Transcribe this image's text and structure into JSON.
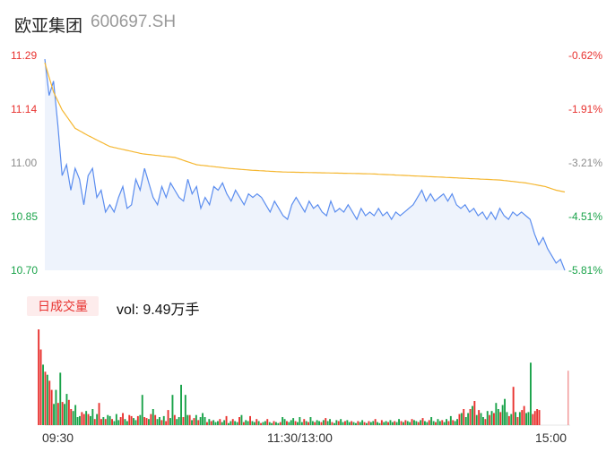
{
  "header": {
    "name": "欧亚集团",
    "code": "600697.SH"
  },
  "chart_data": {
    "type": "line",
    "price_ticks": [
      "11.29",
      "11.14",
      "11.00",
      "10.85",
      "10.70"
    ],
    "pct_ticks": [
      "-0.62%",
      "-1.91%",
      "-3.21%",
      "-4.51%",
      "-5.81%"
    ],
    "ylim": [
      10.7,
      11.29
    ],
    "x_ticks": [
      "09:30",
      "11:30/13:00",
      "15:00"
    ],
    "points": 241,
    "price_anchors": [
      [
        0,
        11.28
      ],
      [
        2,
        11.18
      ],
      [
        4,
        11.22
      ],
      [
        6,
        11.1
      ],
      [
        8,
        10.96
      ],
      [
        10,
        10.99
      ],
      [
        12,
        10.92
      ],
      [
        14,
        10.98
      ],
      [
        16,
        10.95
      ],
      [
        18,
        10.88
      ],
      [
        20,
        10.96
      ],
      [
        22,
        10.98
      ],
      [
        24,
        10.9
      ],
      [
        26,
        10.92
      ],
      [
        28,
        10.86
      ],
      [
        30,
        10.88
      ],
      [
        32,
        10.86
      ],
      [
        34,
        10.9
      ],
      [
        36,
        10.93
      ],
      [
        38,
        10.87
      ],
      [
        40,
        10.88
      ],
      [
        42,
        10.95
      ],
      [
        44,
        10.92
      ],
      [
        46,
        10.98
      ],
      [
        48,
        10.94
      ],
      [
        50,
        10.9
      ],
      [
        52,
        10.88
      ],
      [
        54,
        10.93
      ],
      [
        56,
        10.9
      ],
      [
        58,
        10.94
      ],
      [
        60,
        10.92
      ],
      [
        62,
        10.9
      ],
      [
        64,
        10.89
      ],
      [
        66,
        10.95
      ],
      [
        68,
        10.91
      ],
      [
        70,
        10.93
      ],
      [
        72,
        10.87
      ],
      [
        74,
        10.9
      ],
      [
        76,
        10.88
      ],
      [
        78,
        10.93
      ],
      [
        80,
        10.92
      ],
      [
        82,
        10.94
      ],
      [
        84,
        10.91
      ],
      [
        86,
        10.89
      ],
      [
        88,
        10.92
      ],
      [
        90,
        10.9
      ],
      [
        92,
        10.88
      ],
      [
        94,
        10.91
      ],
      [
        96,
        10.9
      ],
      [
        98,
        10.91
      ],
      [
        100,
        10.9
      ],
      [
        102,
        10.88
      ],
      [
        104,
        10.86
      ],
      [
        106,
        10.89
      ],
      [
        108,
        10.87
      ],
      [
        110,
        10.85
      ],
      [
        112,
        10.84
      ],
      [
        114,
        10.88
      ],
      [
        116,
        10.9
      ],
      [
        118,
        10.88
      ],
      [
        120,
        10.86
      ],
      [
        122,
        10.89
      ],
      [
        124,
        10.87
      ],
      [
        126,
        10.88
      ],
      [
        128,
        10.86
      ],
      [
        130,
        10.85
      ],
      [
        132,
        10.89
      ],
      [
        134,
        10.86
      ],
      [
        136,
        10.87
      ],
      [
        138,
        10.86
      ],
      [
        140,
        10.88
      ],
      [
        142,
        10.86
      ],
      [
        144,
        10.84
      ],
      [
        146,
        10.87
      ],
      [
        148,
        10.85
      ],
      [
        150,
        10.86
      ],
      [
        152,
        10.85
      ],
      [
        154,
        10.87
      ],
      [
        156,
        10.85
      ],
      [
        158,
        10.86
      ],
      [
        160,
        10.84
      ],
      [
        162,
        10.86
      ],
      [
        164,
        10.85
      ],
      [
        166,
        10.86
      ],
      [
        168,
        10.87
      ],
      [
        170,
        10.88
      ],
      [
        172,
        10.9
      ],
      [
        174,
        10.92
      ],
      [
        176,
        10.89
      ],
      [
        178,
        10.91
      ],
      [
        180,
        10.89
      ],
      [
        182,
        10.9
      ],
      [
        184,
        10.91
      ],
      [
        186,
        10.89
      ],
      [
        188,
        10.91
      ],
      [
        190,
        10.88
      ],
      [
        192,
        10.87
      ],
      [
        194,
        10.88
      ],
      [
        196,
        10.86
      ],
      [
        198,
        10.87
      ],
      [
        200,
        10.85
      ],
      [
        202,
        10.86
      ],
      [
        204,
        10.84
      ],
      [
        206,
        10.86
      ],
      [
        208,
        10.84
      ],
      [
        210,
        10.87
      ],
      [
        212,
        10.85
      ],
      [
        214,
        10.84
      ],
      [
        216,
        10.86
      ],
      [
        218,
        10.85
      ],
      [
        220,
        10.86
      ],
      [
        222,
        10.85
      ],
      [
        224,
        10.84
      ],
      [
        226,
        10.8
      ],
      [
        228,
        10.77
      ],
      [
        230,
        10.79
      ],
      [
        232,
        10.76
      ],
      [
        234,
        10.74
      ],
      [
        236,
        10.72
      ],
      [
        238,
        10.73
      ],
      [
        240,
        10.7
      ]
    ],
    "avg_anchors": [
      [
        0,
        11.27
      ],
      [
        4,
        11.19
      ],
      [
        8,
        11.14
      ],
      [
        14,
        11.09
      ],
      [
        20,
        11.07
      ],
      [
        30,
        11.04
      ],
      [
        45,
        11.02
      ],
      [
        60,
        11.01
      ],
      [
        70,
        10.99
      ],
      [
        85,
        10.98
      ],
      [
        95,
        10.975
      ],
      [
        110,
        10.97
      ],
      [
        150,
        10.965
      ],
      [
        186,
        10.955
      ],
      [
        210,
        10.948
      ],
      [
        222,
        10.94
      ],
      [
        231,
        10.93
      ],
      [
        236,
        10.92
      ],
      [
        240,
        10.915
      ]
    ],
    "volume": {
      "max_label": "vol: 9.49万手",
      "bars": [
        [
          9.5,
          1
        ],
        [
          7.5,
          1
        ],
        [
          6.0,
          0
        ],
        [
          5.3,
          1
        ],
        [
          5.0,
          0
        ],
        [
          4.4,
          1
        ],
        [
          3.5,
          1
        ],
        [
          2.1,
          0
        ],
        [
          3.5,
          0
        ],
        [
          2.2,
          1
        ],
        [
          5.2,
          0
        ],
        [
          2.3,
          1
        ],
        [
          2.1,
          0
        ],
        [
          3.1,
          0
        ],
        [
          2.5,
          1
        ],
        [
          1.6,
          1
        ],
        [
          1.4,
          0
        ],
        [
          2.0,
          0
        ],
        [
          0.8,
          0
        ],
        [
          0.9,
          0
        ],
        [
          1.3,
          1
        ],
        [
          1.1,
          1
        ],
        [
          1.4,
          0
        ],
        [
          1.1,
          1
        ],
        [
          0.9,
          0
        ],
        [
          1.6,
          0
        ],
        [
          0.6,
          1
        ],
        [
          1.1,
          0
        ],
        [
          2.2,
          1
        ],
        [
          0.6,
          1
        ],
        [
          0.8,
          0
        ],
        [
          0.6,
          1
        ],
        [
          1.0,
          0
        ],
        [
          0.9,
          0
        ],
        [
          0.6,
          1
        ],
        [
          0.4,
          0
        ],
        [
          1.1,
          0
        ],
        [
          0.5,
          0
        ],
        [
          0.8,
          1
        ],
        [
          1.2,
          1
        ],
        [
          0.6,
          0
        ],
        [
          0.4,
          0
        ],
        [
          1.0,
          1
        ],
        [
          0.9,
          1
        ],
        [
          0.7,
          0
        ],
        [
          0.5,
          0
        ],
        [
          0.9,
          1
        ],
        [
          1.0,
          0
        ],
        [
          3.0,
          0
        ],
        [
          0.8,
          1
        ],
        [
          0.7,
          1
        ],
        [
          0.6,
          0
        ],
        [
          1.1,
          1
        ],
        [
          1.6,
          0
        ],
        [
          1.0,
          1
        ],
        [
          0.6,
          0
        ],
        [
          0.8,
          0
        ],
        [
          0.5,
          1
        ],
        [
          0.9,
          0
        ],
        [
          0.4,
          1
        ],
        [
          1.5,
          1
        ],
        [
          0.7,
          0
        ],
        [
          3.0,
          0
        ],
        [
          1.0,
          1
        ],
        [
          0.6,
          0
        ],
        [
          0.8,
          0
        ],
        [
          4.0,
          0
        ],
        [
          0.8,
          1
        ],
        [
          3.0,
          0
        ],
        [
          1.0,
          0
        ],
        [
          1.0,
          1
        ],
        [
          0.5,
          0
        ],
        [
          0.7,
          1
        ],
        [
          1.0,
          0
        ],
        [
          0.5,
          1
        ],
        [
          0.8,
          0
        ],
        [
          1.2,
          0
        ],
        [
          0.8,
          0
        ],
        [
          0.3,
          1
        ],
        [
          0.6,
          0
        ],
        [
          0.4,
          1
        ],
        [
          0.5,
          0
        ],
        [
          0.3,
          0
        ],
        [
          0.4,
          0
        ],
        [
          0.6,
          1
        ],
        [
          0.3,
          0
        ],
        [
          0.5,
          0
        ],
        [
          0.9,
          1
        ],
        [
          0.2,
          0
        ],
        [
          0.4,
          0
        ],
        [
          0.6,
          1
        ],
        [
          0.4,
          0
        ],
        [
          0.3,
          0
        ],
        [
          0.8,
          1
        ],
        [
          1.0,
          0
        ],
        [
          0.3,
          1
        ],
        [
          0.5,
          0
        ],
        [
          0.4,
          0
        ],
        [
          0.9,
          1
        ],
        [
          0.4,
          0
        ],
        [
          0.3,
          0
        ],
        [
          0.6,
          1
        ],
        [
          0.4,
          0
        ],
        [
          0.2,
          1
        ],
        [
          0.3,
          0
        ],
        [
          0.4,
          0
        ],
        [
          0.6,
          1
        ],
        [
          0.3,
          0
        ],
        [
          0.2,
          0
        ],
        [
          0.4,
          1
        ],
        [
          0.3,
          0
        ],
        [
          0.2,
          0
        ],
        [
          0.3,
          1
        ],
        [
          0.8,
          0
        ],
        [
          0.6,
          0
        ],
        [
          0.4,
          1
        ],
        [
          0.3,
          0
        ],
        [
          0.5,
          0
        ],
        [
          0.7,
          0
        ],
        [
          0.4,
          1
        ],
        [
          0.3,
          0
        ],
        [
          0.8,
          0
        ],
        [
          0.3,
          0
        ],
        [
          0.6,
          1
        ],
        [
          0.4,
          0
        ],
        [
          0.3,
          1
        ],
        [
          0.8,
          0
        ],
        [
          0.4,
          0
        ],
        [
          0.3,
          1
        ],
        [
          0.5,
          0
        ],
        [
          0.4,
          0
        ],
        [
          0.3,
          1
        ],
        [
          0.5,
          0
        ],
        [
          0.7,
          1
        ],
        [
          0.4,
          0
        ],
        [
          0.6,
          0
        ],
        [
          0.3,
          1
        ],
        [
          0.2,
          0
        ],
        [
          0.5,
          0
        ],
        [
          0.4,
          1
        ],
        [
          0.6,
          0
        ],
        [
          0.3,
          0
        ],
        [
          0.4,
          1
        ],
        [
          0.5,
          0
        ],
        [
          0.3,
          0
        ],
        [
          0.4,
          1
        ],
        [
          0.3,
          0
        ],
        [
          0.2,
          0
        ],
        [
          0.4,
          1
        ],
        [
          0.3,
          0
        ],
        [
          0.5,
          0
        ],
        [
          0.3,
          1
        ],
        [
          0.2,
          0
        ],
        [
          0.4,
          1
        ],
        [
          0.3,
          0
        ],
        [
          0.4,
          0
        ],
        [
          0.6,
          1
        ],
        [
          0.3,
          0
        ],
        [
          0.2,
          0
        ],
        [
          0.5,
          1
        ],
        [
          0.3,
          0
        ],
        [
          0.4,
          0
        ],
        [
          0.3,
          1
        ],
        [
          0.5,
          0
        ],
        [
          0.3,
          0
        ],
        [
          0.4,
          1
        ],
        [
          0.3,
          0
        ],
        [
          0.6,
          0
        ],
        [
          0.4,
          1
        ],
        [
          0.3,
          0
        ],
        [
          0.5,
          1
        ],
        [
          0.4,
          0
        ],
        [
          0.3,
          0
        ],
        [
          0.6,
          1
        ],
        [
          0.5,
          0
        ],
        [
          0.4,
          0
        ],
        [
          0.3,
          1
        ],
        [
          0.5,
          0
        ],
        [
          0.7,
          1
        ],
        [
          0.4,
          0
        ],
        [
          0.3,
          0
        ],
        [
          0.5,
          1
        ],
        [
          0.8,
          0
        ],
        [
          0.4,
          0
        ],
        [
          0.3,
          1
        ],
        [
          0.6,
          0
        ],
        [
          0.4,
          0
        ],
        [
          0.5,
          1
        ],
        [
          0.3,
          0
        ],
        [
          0.6,
          0
        ],
        [
          0.4,
          1
        ],
        [
          0.9,
          0
        ],
        [
          0.5,
          1
        ],
        [
          0.4,
          0
        ],
        [
          0.6,
          0
        ],
        [
          1.1,
          1
        ],
        [
          1.2,
          0
        ],
        [
          1.6,
          1
        ],
        [
          0.8,
          0
        ],
        [
          1.2,
          0
        ],
        [
          1.6,
          1
        ],
        [
          1.9,
          0
        ],
        [
          2.4,
          1
        ],
        [
          1.0,
          0
        ],
        [
          1.5,
          1
        ],
        [
          1.2,
          0
        ],
        [
          0.8,
          0
        ],
        [
          0.6,
          1
        ],
        [
          1.4,
          0
        ],
        [
          1.0,
          1
        ],
        [
          1.4,
          0
        ],
        [
          1.2,
          1
        ],
        [
          2.2,
          0
        ],
        [
          1.6,
          0
        ],
        [
          1.3,
          1
        ],
        [
          2.0,
          0
        ],
        [
          2.6,
          0
        ],
        [
          1.3,
          0
        ],
        [
          0.9,
          1
        ],
        [
          1.1,
          0
        ],
        [
          3.8,
          1
        ],
        [
          1.3,
          0
        ],
        [
          0.8,
          1
        ],
        [
          1.3,
          0
        ],
        [
          1.5,
          1
        ],
        [
          1.9,
          1
        ],
        [
          1.2,
          0
        ],
        [
          1.3,
          0
        ],
        [
          6.2,
          0
        ],
        [
          1.1,
          1
        ],
        [
          1.4,
          1
        ],
        [
          1.6,
          1
        ],
        [
          1.5,
          1
        ]
      ],
      "tail_bar": 5.4
    },
    "colors": {
      "price_line": "#5b8def",
      "price_fill": "#eef3fc",
      "avg_line": "#f5b731",
      "up": "#e8322f",
      "down": "#1aa34a",
      "neutral_label": "#8c8c8c"
    }
  },
  "volume_panel": {
    "tab_label": "日成交量",
    "summary": "vol: 9.49万手"
  }
}
